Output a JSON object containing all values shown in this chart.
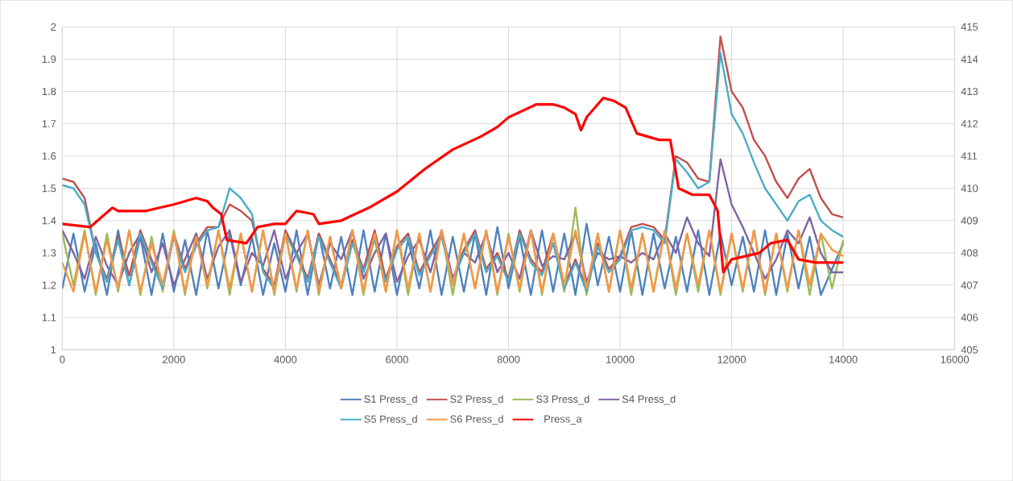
{
  "chart_data": {
    "type": "line",
    "xlim": [
      0,
      16000
    ],
    "xticks": [
      0,
      2000,
      4000,
      6000,
      8000,
      10000,
      12000,
      14000,
      16000
    ],
    "ylim": [
      1,
      2
    ],
    "yticks": [
      1,
      1.1,
      1.2,
      1.3,
      1.4,
      1.5,
      1.6,
      1.7,
      1.8,
      1.9,
      2
    ],
    "y2lim": [
      405,
      415
    ],
    "y2ticks": [
      405,
      406,
      407,
      408,
      409,
      410,
      411,
      412,
      413,
      414,
      415
    ],
    "grid": true,
    "legend": "bottom",
    "x": [
      0,
      200,
      400,
      600,
      800,
      1000,
      1200,
      1400,
      1600,
      1800,
      2000,
      2200,
      2400,
      2600,
      2800,
      3000,
      3200,
      3400,
      3600,
      3800,
      4000,
      4200,
      4400,
      4600,
      4800,
      5000,
      5200,
      5400,
      5600,
      5800,
      6000,
      6200,
      6400,
      6600,
      6800,
      7000,
      7200,
      7400,
      7600,
      7800,
      8000,
      8200,
      8400,
      8600,
      8800,
      9000,
      9200,
      9400,
      9600,
      9800,
      10000,
      10200,
      10400,
      10600,
      10800,
      11000,
      11200,
      11400,
      11600,
      11800,
      12000,
      12200,
      12400,
      12600,
      12800,
      13000,
      13200,
      13400,
      13600,
      13800,
      14000
    ],
    "series": [
      {
        "name": "S1 Press_d",
        "color": "#4f81bd",
        "values": [
          1.19,
          1.36,
          1.18,
          1.33,
          1.17,
          1.37,
          1.2,
          1.35,
          1.17,
          1.36,
          1.18,
          1.34,
          1.17,
          1.37,
          1.19,
          1.36,
          1.2,
          1.35,
          1.17,
          1.33,
          1.18,
          1.37,
          1.17,
          1.36,
          1.19,
          1.35,
          1.17,
          1.37,
          1.18,
          1.36,
          1.17,
          1.34,
          1.19,
          1.37,
          1.17,
          1.35,
          1.18,
          1.36,
          1.17,
          1.38,
          1.19,
          1.35,
          1.17,
          1.37,
          1.18,
          1.36,
          1.17,
          1.39,
          1.2,
          1.35,
          1.18,
          1.37,
          1.17,
          1.36,
          1.19,
          1.35,
          1.18,
          1.37,
          1.17,
          1.36,
          1.2,
          1.35,
          1.18,
          1.37,
          1.17,
          1.36,
          1.19,
          1.35,
          1.17,
          1.25,
          1.33
        ]
      },
      {
        "name": "S2 Press_d",
        "color": "#c0504d",
        "values": [
          1.53,
          1.52,
          1.47,
          1.3,
          1.22,
          1.35,
          1.23,
          1.37,
          1.28,
          1.2,
          1.36,
          1.25,
          1.33,
          1.38,
          1.38,
          1.45,
          1.43,
          1.4,
          1.25,
          1.2,
          1.37,
          1.3,
          1.22,
          1.36,
          1.28,
          1.2,
          1.34,
          1.25,
          1.37,
          1.22,
          1.32,
          1.36,
          1.24,
          1.3,
          1.36,
          1.22,
          1.31,
          1.37,
          1.25,
          1.3,
          1.22,
          1.37,
          1.28,
          1.24,
          1.36,
          1.2,
          1.28,
          1.19,
          1.33,
          1.25,
          1.29,
          1.38,
          1.39,
          1.38,
          1.34,
          1.6,
          1.58,
          1.53,
          1.52,
          1.97,
          1.8,
          1.75,
          1.65,
          1.6,
          1.52,
          1.47,
          1.53,
          1.56,
          1.47,
          1.42,
          1.41
        ]
      },
      {
        "name": "S3 Press_d",
        "color": "#9bbb59",
        "values": [
          1.36,
          1.2,
          1.37,
          1.17,
          1.36,
          1.18,
          1.37,
          1.17,
          1.35,
          1.18,
          1.37,
          1.17,
          1.36,
          1.19,
          1.37,
          1.17,
          1.36,
          1.18,
          1.37,
          1.17,
          1.36,
          1.18,
          1.37,
          1.17,
          1.35,
          1.19,
          1.37,
          1.17,
          1.36,
          1.18,
          1.37,
          1.17,
          1.36,
          1.18,
          1.37,
          1.17,
          1.36,
          1.19,
          1.37,
          1.17,
          1.36,
          1.18,
          1.37,
          1.17,
          1.36,
          1.18,
          1.44,
          1.17,
          1.36,
          1.18,
          1.37,
          1.17,
          1.36,
          1.18,
          1.37,
          1.17,
          1.36,
          1.18,
          1.37,
          1.17,
          1.36,
          1.18,
          1.37,
          1.17,
          1.36,
          1.18,
          1.37,
          1.17,
          1.36,
          1.19,
          1.34
        ]
      },
      {
        "name": "S4 Press_d",
        "color": "#8064a2",
        "values": [
          1.37,
          1.3,
          1.22,
          1.35,
          1.26,
          1.2,
          1.3,
          1.36,
          1.24,
          1.33,
          1.2,
          1.28,
          1.36,
          1.22,
          1.32,
          1.37,
          1.21,
          1.3,
          1.26,
          1.37,
          1.22,
          1.3,
          1.36,
          1.2,
          1.33,
          1.28,
          1.37,
          1.22,
          1.3,
          1.36,
          1.21,
          1.29,
          1.34,
          1.24,
          1.37,
          1.22,
          1.3,
          1.27,
          1.36,
          1.24,
          1.3,
          1.22,
          1.37,
          1.26,
          1.29,
          1.28,
          1.36,
          1.21,
          1.3,
          1.28,
          1.29,
          1.27,
          1.3,
          1.28,
          1.36,
          1.3,
          1.41,
          1.33,
          1.29,
          1.59,
          1.45,
          1.38,
          1.3,
          1.22,
          1.28,
          1.37,
          1.33,
          1.41,
          1.3,
          1.24,
          1.24
        ]
      },
      {
        "name": "S5 Press_d",
        "color": "#4bacc6",
        "values": [
          1.51,
          1.5,
          1.45,
          1.3,
          1.21,
          1.34,
          1.2,
          1.36,
          1.27,
          1.19,
          1.35,
          1.24,
          1.32,
          1.37,
          1.38,
          1.5,
          1.47,
          1.42,
          1.24,
          1.19,
          1.36,
          1.29,
          1.21,
          1.35,
          1.27,
          1.19,
          1.33,
          1.24,
          1.34,
          1.21,
          1.31,
          1.35,
          1.23,
          1.29,
          1.35,
          1.21,
          1.3,
          1.36,
          1.24,
          1.29,
          1.21,
          1.36,
          1.27,
          1.23,
          1.33,
          1.19,
          1.27,
          1.18,
          1.32,
          1.24,
          1.28,
          1.37,
          1.38,
          1.37,
          1.33,
          1.59,
          1.55,
          1.5,
          1.52,
          1.92,
          1.73,
          1.67,
          1.58,
          1.5,
          1.45,
          1.4,
          1.46,
          1.48,
          1.4,
          1.37,
          1.35
        ]
      },
      {
        "name": "S6 Press_d",
        "color": "#f79646",
        "values": [
          1.27,
          1.18,
          1.36,
          1.18,
          1.34,
          1.19,
          1.37,
          1.18,
          1.33,
          1.2,
          1.36,
          1.18,
          1.35,
          1.2,
          1.37,
          1.19,
          1.36,
          1.18,
          1.37,
          1.18,
          1.36,
          1.19,
          1.37,
          1.18,
          1.35,
          1.19,
          1.37,
          1.18,
          1.36,
          1.18,
          1.37,
          1.19,
          1.36,
          1.18,
          1.37,
          1.2,
          1.36,
          1.19,
          1.37,
          1.18,
          1.35,
          1.19,
          1.37,
          1.18,
          1.36,
          1.2,
          1.37,
          1.19,
          1.36,
          1.18,
          1.37,
          1.19,
          1.36,
          1.18,
          1.37,
          1.19,
          1.36,
          1.2,
          1.37,
          1.18,
          1.36,
          1.19,
          1.37,
          1.18,
          1.36,
          1.19,
          1.37,
          1.2,
          1.36,
          1.31,
          1.29
        ]
      },
      {
        "name": "Press_a",
        "color": "#ff0000",
        "axis": "y2",
        "x": [
          0,
          500,
          700,
          900,
          1000,
          1500,
          2000,
          2400,
          2600,
          2700,
          2850,
          2950,
          3300,
          3500,
          3800,
          4000,
          4200,
          4500,
          4600,
          5000,
          5500,
          6000,
          6500,
          7000,
          7500,
          7800,
          8000,
          8500,
          8800,
          9000,
          9200,
          9300,
          9400,
          9700,
          9900,
          10100,
          10300,
          10700,
          10900,
          11050,
          11300,
          11600,
          11750,
          11850,
          12000,
          12500,
          12700,
          13000,
          13200,
          13500,
          14000
        ],
        "values": [
          408.9,
          408.8,
          409.1,
          409.4,
          409.3,
          409.3,
          409.5,
          409.7,
          409.6,
          409.4,
          409.2,
          408.4,
          408.3,
          408.8,
          408.9,
          408.9,
          409.3,
          409.2,
          408.9,
          409.0,
          409.4,
          409.9,
          410.6,
          411.2,
          411.6,
          411.9,
          412.2,
          412.6,
          412.6,
          412.5,
          412.3,
          411.8,
          412.2,
          412.8,
          412.7,
          412.5,
          411.7,
          411.5,
          411.5,
          410.0,
          409.8,
          409.8,
          409.3,
          407.4,
          407.8,
          408.0,
          408.3,
          408.4,
          407.8,
          407.7,
          407.7
        ]
      }
    ]
  }
}
